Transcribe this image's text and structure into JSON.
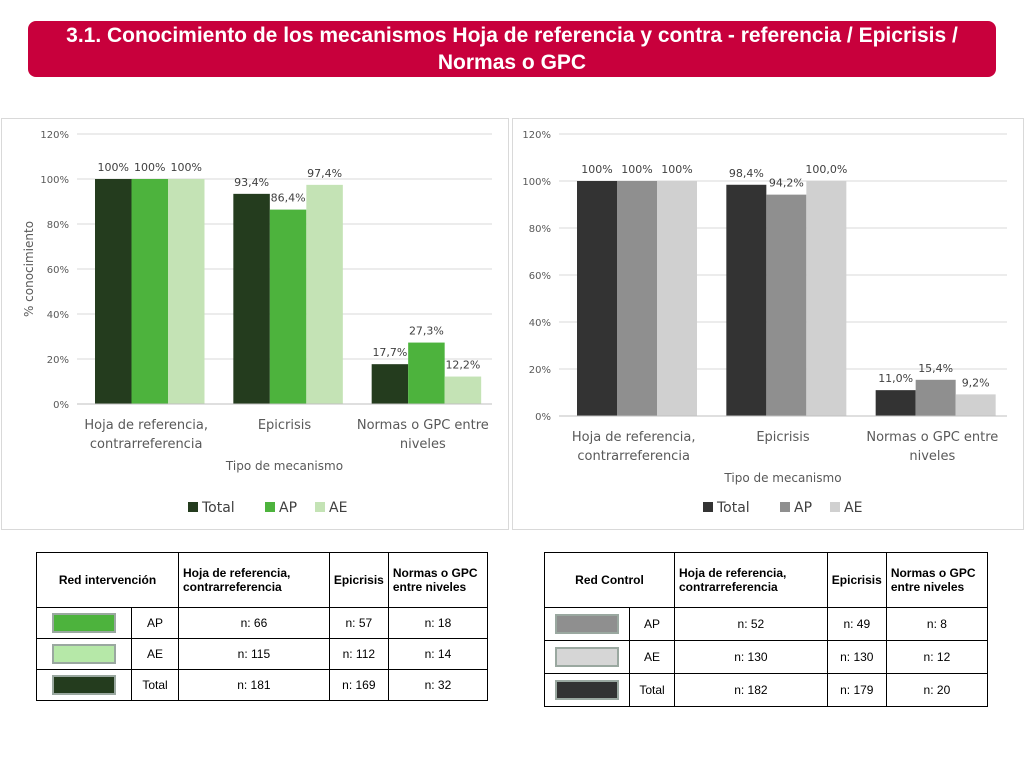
{
  "title": "3.1. Conocimiento de los mecanismos Hoja de referencia y contra - referencia / Epicrisis / Normas o GPC",
  "chart_data": [
    {
      "type": "bar",
      "categories": [
        "Hoja de referencia, contrarreferencia",
        "Epicrisis",
        "Normas o GPC entre niveles"
      ],
      "category_lines": [
        [
          "Hoja de referencia,",
          "contrarreferencia"
        ],
        [
          "Epicrisis"
        ],
        [
          "Normas o GPC entre",
          "niveles"
        ]
      ],
      "series": [
        {
          "name": "Total",
          "values": [
            100,
            93.4,
            17.7
          ],
          "labels": [
            "100%",
            "93,4%",
            "17,7%"
          ],
          "color": "#243c1e"
        },
        {
          "name": "AP",
          "values": [
            100,
            86.4,
            27.3
          ],
          "labels": [
            "100%",
            "86,4%",
            "27,3%"
          ],
          "color": "#4db33d"
        },
        {
          "name": "AE",
          "values": [
            100,
            97.4,
            12.2
          ],
          "labels": [
            "100%",
            "97,4%",
            "12,2%"
          ],
          "color": "#c4e3b5"
        }
      ],
      "ylim": [
        0,
        120
      ],
      "yticks": [
        "0%",
        "20%",
        "40%",
        "60%",
        "80%",
        "100%",
        "120%"
      ],
      "ylabel": "% conocimiento",
      "xlabel": "Tipo de mecanismo",
      "grid": true,
      "legend": "bottom"
    },
    {
      "type": "bar",
      "categories": [
        "Hoja de referencia, contrarreferencia",
        "Epicrisis",
        "Normas o GPC entre niveles"
      ],
      "category_lines": [
        [
          "Hoja de referencia,",
          "contrarreferencia"
        ],
        [
          "Epicrisis"
        ],
        [
          "Normas o GPC entre",
          "niveles"
        ]
      ],
      "series": [
        {
          "name": "Total",
          "values": [
            100,
            98.4,
            11.0
          ],
          "labels": [
            "100%",
            "98,4%",
            "11,0%"
          ],
          "color": "#333333"
        },
        {
          "name": "AP",
          "values": [
            100,
            94.2,
            15.4
          ],
          "labels": [
            "100%",
            "94,2%",
            "15,4%"
          ],
          "color": "#8f8f8f"
        },
        {
          "name": "AE",
          "values": [
            100,
            100.0,
            9.2
          ],
          "labels": [
            "100%",
            "100,0%",
            "9,2%"
          ],
          "color": "#d0d0d0"
        }
      ],
      "ylim": [
        0,
        120
      ],
      "yticks": [
        "0%",
        "20%",
        "40%",
        "60%",
        "80%",
        "100%",
        "120%"
      ],
      "ylabel": "",
      "xlabel": "Tipo de mecanismo",
      "grid": true,
      "legend": "bottom"
    }
  ],
  "tables": {
    "left": {
      "header": [
        "Red intervención",
        "Hoja de referencia, contrarreferencia",
        "Epicrisis",
        "Normas o GPC entre niveles"
      ],
      "rows": [
        {
          "swatch": "#4db33d",
          "label": "AP",
          "values": [
            "n: 66",
            "n: 57",
            "n: 18"
          ]
        },
        {
          "swatch": "#b6e8a8",
          "label": "AE",
          "values": [
            "n: 115",
            "n: 112",
            "n: 14"
          ]
        },
        {
          "swatch": "#243c1e",
          "label": "Total",
          "values": [
            "n: 181",
            "n: 169",
            "n: 32"
          ]
        }
      ]
    },
    "right": {
      "header": [
        "Red Control",
        "Hoja de referencia, contrarreferencia",
        "Epicrisis",
        "Normas o GPC entre niveles"
      ],
      "rows": [
        {
          "swatch": "#8f8f8f",
          "label": "AP",
          "values": [
            "n: 52",
            "n: 49",
            "n: 8"
          ]
        },
        {
          "swatch": "#d6d6d6",
          "label": "AE",
          "values": [
            "n: 130",
            "n: 130",
            "n: 12"
          ]
        },
        {
          "swatch": "#333333",
          "label": "Total",
          "values": [
            "n: 182",
            "n: 179",
            "n: 20"
          ]
        }
      ]
    }
  }
}
